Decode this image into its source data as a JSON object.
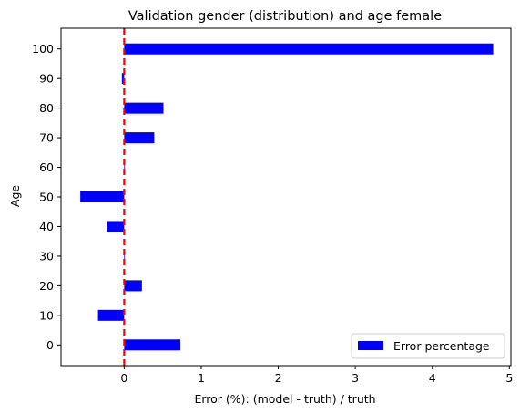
{
  "chart_data": {
    "type": "bar",
    "orientation": "horizontal",
    "title": "Validation gender (distribution) and age female",
    "xlabel": "Error (%): (model - truth) / truth",
    "ylabel": "Age",
    "categories": [
      "0",
      "10",
      "20",
      "30",
      "40",
      "50",
      "60",
      "70",
      "80",
      "90",
      "100"
    ],
    "category_values": [
      0,
      10,
      20,
      30,
      40,
      50,
      60,
      70,
      80,
      90,
      100
    ],
    "series": [
      {
        "name": "Error percentage",
        "color": "#0000ff",
        "values": [
          0.73,
          -0.34,
          0.23,
          0.0,
          -0.22,
          -0.57,
          0.0,
          0.39,
          0.51,
          -0.03,
          4.79
        ]
      }
    ],
    "xlim": [
      -0.82,
      5.02
    ],
    "ylim": [
      -7,
      107
    ],
    "x_ticks": [
      0,
      1,
      2,
      3,
      4,
      5
    ],
    "y_ticks": [
      0,
      10,
      20,
      30,
      40,
      50,
      60,
      70,
      80,
      90,
      100
    ],
    "reference_line": {
      "x": 0,
      "color": "#ff0000",
      "style": "dashed"
    },
    "legend": {
      "position": "lower-right"
    },
    "grid": false
  }
}
